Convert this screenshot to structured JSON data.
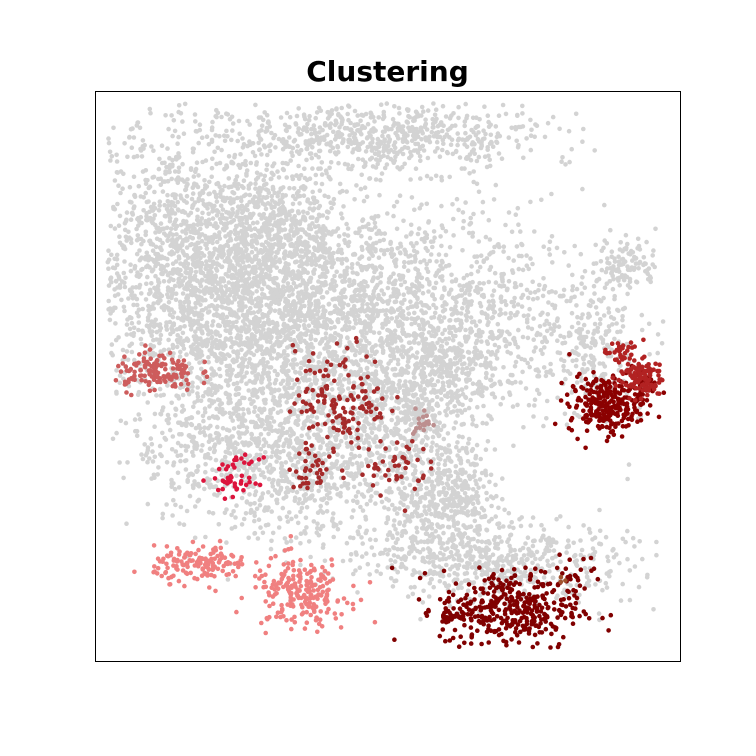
{
  "chart_data": {
    "type": "scatter",
    "title": "Clustering",
    "xlabel": "",
    "ylabel": "",
    "ticks": "none",
    "grid": false,
    "legend": "none",
    "colors": {
      "background": "#d3d3d3",
      "maroon": "#800000",
      "darkred": "#8b0000",
      "firebrick": "#b22222",
      "brown": "#a52a2a",
      "indianred": "#cd5c5c",
      "lightcoral": "#f08080",
      "crimson": "#dc143c",
      "rosybrown": "#bc8f8f",
      "sienna": "#a0522d"
    },
    "clusters": [
      {
        "color": "background",
        "blobs": [
          {
            "cx": 0.16,
            "cy": 0.71,
            "sx": 0.09,
            "sy": 0.12,
            "n": 1400
          },
          {
            "cx": 0.31,
            "cy": 0.6,
            "sx": 0.12,
            "sy": 0.09,
            "n": 1500
          },
          {
            "cx": 0.55,
            "cy": 0.6,
            "sx": 0.16,
            "sy": 0.1,
            "n": 1500
          },
          {
            "cx": 0.32,
            "cy": 0.75,
            "sx": 0.06,
            "sy": 0.06,
            "n": 500
          },
          {
            "cx": 0.5,
            "cy": 0.92,
            "sx": 0.13,
            "sy": 0.03,
            "n": 650
          },
          {
            "cx": 0.36,
            "cy": 0.34,
            "sx": 0.08,
            "sy": 0.07,
            "n": 600
          },
          {
            "cx": 0.22,
            "cy": 0.38,
            "sx": 0.08,
            "sy": 0.07,
            "n": 450
          },
          {
            "cx": 0.58,
            "cy": 0.25,
            "sx": 0.06,
            "sy": 0.05,
            "n": 350
          },
          {
            "cx": 0.52,
            "cy": 0.43,
            "sx": 0.06,
            "sy": 0.05,
            "n": 350
          },
          {
            "cx": 0.7,
            "cy": 0.17,
            "sx": 0.11,
            "sy": 0.035,
            "n": 500
          },
          {
            "cx": 0.61,
            "cy": 0.31,
            "sx": 0.03,
            "sy": 0.035,
            "n": 180
          },
          {
            "cx": 0.91,
            "cy": 0.7,
            "sx": 0.025,
            "sy": 0.025,
            "n": 100
          },
          {
            "cx": 0.86,
            "cy": 0.55,
            "sx": 0.03,
            "sy": 0.06,
            "n": 160
          },
          {
            "cx": 0.6,
            "cy": 0.52,
            "sx": 0.05,
            "sy": 0.045,
            "n": 200
          }
        ]
      },
      {
        "color": "maroon",
        "blobs": [
          {
            "cx": 0.71,
            "cy": 0.09,
            "sx": 0.06,
            "sy": 0.035,
            "n": 380
          },
          {
            "cx": 0.61,
            "cy": 0.08,
            "sx": 0.012,
            "sy": 0.01,
            "n": 25
          },
          {
            "cx": 0.82,
            "cy": 0.15,
            "sx": 0.025,
            "sy": 0.02,
            "n": 25
          }
        ]
      },
      {
        "color": "darkred",
        "blobs": [
          {
            "cx": 0.87,
            "cy": 0.45,
            "sx": 0.03,
            "sy": 0.025,
            "n": 240
          },
          {
            "cx": 0.93,
            "cy": 0.48,
            "sx": 0.015,
            "sy": 0.02,
            "n": 50
          }
        ]
      },
      {
        "color": "firebrick",
        "blobs": [
          {
            "cx": 0.93,
            "cy": 0.5,
            "sx": 0.02,
            "sy": 0.018,
            "n": 110
          },
          {
            "cx": 0.9,
            "cy": 0.54,
            "sx": 0.015,
            "sy": 0.01,
            "n": 30
          }
        ]
      },
      {
        "color": "brown",
        "blobs": [
          {
            "cx": 0.42,
            "cy": 0.46,
            "sx": 0.04,
            "sy": 0.045,
            "n": 140
          },
          {
            "cx": 0.37,
            "cy": 0.34,
            "sx": 0.02,
            "sy": 0.02,
            "n": 35
          },
          {
            "cx": 0.51,
            "cy": 0.34,
            "sx": 0.03,
            "sy": 0.025,
            "n": 45
          }
        ]
      },
      {
        "color": "indianred",
        "blobs": [
          {
            "cx": 0.1,
            "cy": 0.51,
            "sx": 0.035,
            "sy": 0.018,
            "n": 130
          }
        ]
      },
      {
        "color": "lightcoral",
        "blobs": [
          {
            "cx": 0.18,
            "cy": 0.17,
            "sx": 0.04,
            "sy": 0.015,
            "n": 150
          },
          {
            "cx": 0.35,
            "cy": 0.12,
            "sx": 0.04,
            "sy": 0.03,
            "n": 220
          }
        ]
      },
      {
        "color": "crimson",
        "blobs": [
          {
            "cx": 0.24,
            "cy": 0.32,
            "sx": 0.02,
            "sy": 0.018,
            "n": 45
          }
        ]
      },
      {
        "color": "rosybrown",
        "blobs": [
          {
            "cx": 0.56,
            "cy": 0.42,
            "sx": 0.008,
            "sy": 0.012,
            "n": 18
          }
        ]
      },
      {
        "color": "sienna",
        "blobs": [
          {
            "cx": 0.8,
            "cy": 0.14,
            "sx": 0.005,
            "sy": 0.005,
            "n": 3
          }
        ]
      }
    ],
    "xlim": [
      0,
      1
    ],
    "ylim": [
      0,
      1
    ]
  }
}
